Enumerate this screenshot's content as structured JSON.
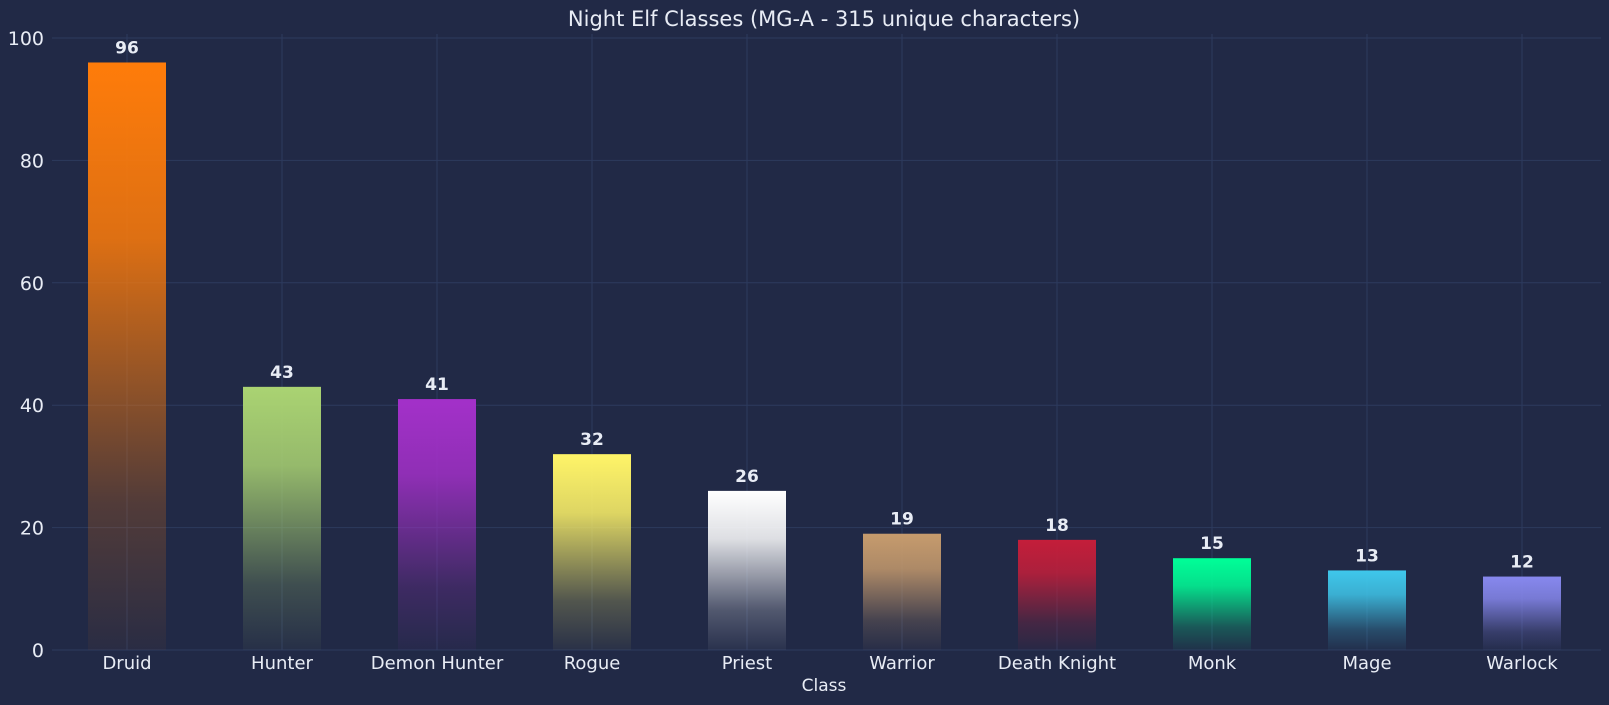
{
  "chart_data": {
    "type": "bar",
    "title": "Night Elf Classes (MG-A - 315 unique characters)",
    "xlabel": "Class",
    "ylabel": "",
    "ylim": [
      0,
      100
    ],
    "yticks": [
      0,
      20,
      40,
      60,
      80,
      100
    ],
    "grid": true,
    "categories": [
      "Druid",
      "Hunter",
      "Demon Hunter",
      "Rogue",
      "Priest",
      "Warrior",
      "Death Knight",
      "Monk",
      "Mage",
      "Warlock"
    ],
    "values": [
      96,
      43,
      41,
      32,
      26,
      19,
      18,
      15,
      13,
      12
    ],
    "colors": [
      "#ff7c0a",
      "#aad372",
      "#a330c9",
      "#fff468",
      "#ffffff",
      "#c69b6d",
      "#c41e3a",
      "#00ff98",
      "#3fc7eb",
      "#8788ee"
    ],
    "background": "#212946"
  }
}
